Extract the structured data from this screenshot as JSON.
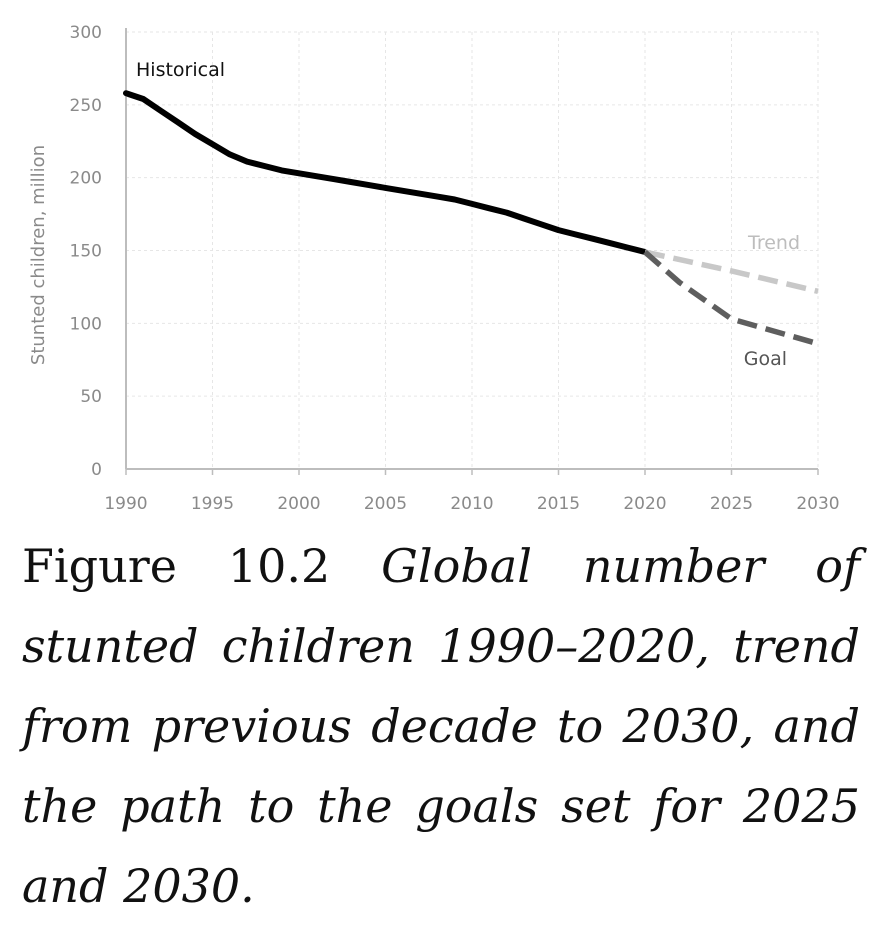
{
  "chart_data": {
    "type": "line",
    "title": "",
    "xlabel": "",
    "ylabel": "Stunted children, million",
    "xlim": [
      1990,
      2030
    ],
    "ylim": [
      0,
      300
    ],
    "x_ticks": [
      1990,
      1995,
      2000,
      2005,
      2010,
      2015,
      2020,
      2025,
      2030
    ],
    "y_ticks": [
      0,
      50,
      100,
      150,
      200,
      250,
      300
    ],
    "grid": true,
    "series": [
      {
        "name": "Historical",
        "style": "solid",
        "color": "#000000",
        "x": [
          1990,
          1991,
          1992,
          1993,
          1994,
          1995,
          1996,
          1997,
          1998,
          1999,
          2000,
          2001,
          2002,
          2003,
          2004,
          2005,
          2006,
          2007,
          2008,
          2009,
          2010,
          2011,
          2012,
          2013,
          2014,
          2015,
          2016,
          2017,
          2018,
          2019,
          2020
        ],
        "y": [
          258,
          254,
          246,
          238,
          230,
          223,
          216,
          211,
          208,
          205,
          203,
          201,
          199,
          197,
          195,
          193,
          191,
          189,
          187,
          185,
          182,
          179,
          176,
          172,
          168,
          164,
          161,
          158,
          155,
          152,
          149
        ]
      },
      {
        "name": "Trend",
        "style": "dashed",
        "color": "#c8c8c8",
        "x": [
          2020,
          2025,
          2030
        ],
        "y": [
          149,
          136,
          122
        ]
      },
      {
        "name": "Goal",
        "style": "dashed",
        "color": "#5e5e5e",
        "x": [
          2020,
          2022,
          2025,
          2030
        ],
        "y": [
          149,
          128,
          103,
          86
        ]
      }
    ]
  },
  "caption": {
    "label": "Figure 10.2",
    "text": "Global number of stunted children 1990–2020, trend from previous decade to 2030, and the path to the goals set for 2025 and 2030."
  }
}
